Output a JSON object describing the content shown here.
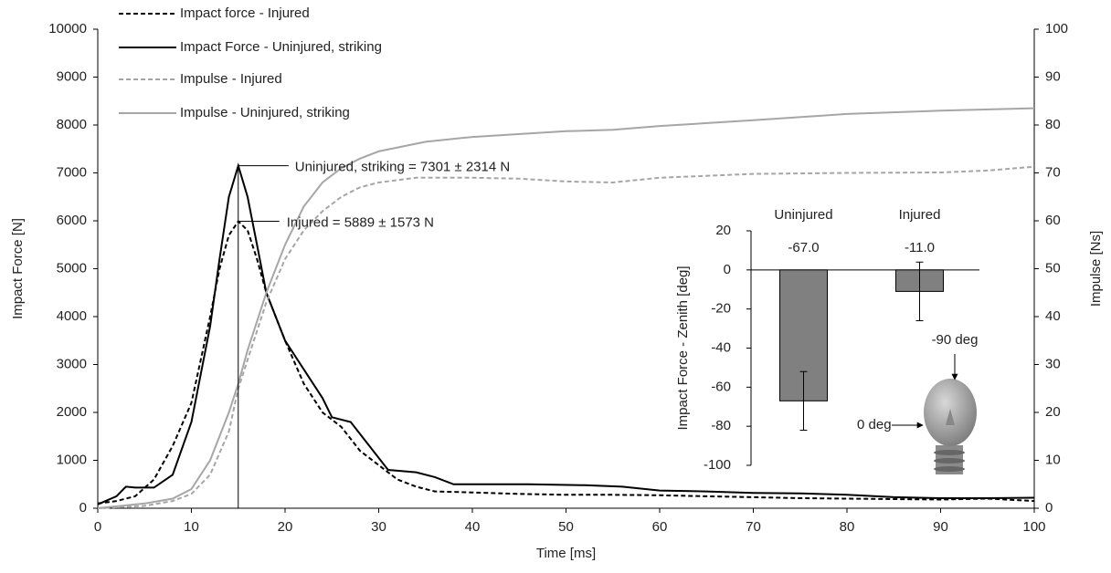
{
  "chart_data": [
    {
      "type": "line",
      "xlabel": "Time [ms]",
      "ylabel": "Impact Force [N]",
      "y2label": "Impulse [Ns]",
      "xlim": [
        0,
        100
      ],
      "xticks": [
        0,
        10,
        20,
        30,
        40,
        50,
        60,
        70,
        80,
        90,
        100
      ],
      "ylim": [
        0,
        10000
      ],
      "yticks": [
        0,
        1000,
        2000,
        3000,
        4000,
        5000,
        6000,
        7000,
        8000,
        9000,
        10000
      ],
      "y2lim": [
        0,
        100
      ],
      "y2ticks": [
        0,
        10,
        20,
        30,
        40,
        50,
        60,
        70,
        80,
        90,
        100
      ],
      "legend": "upper left",
      "annotations": [
        "Uninjured, striking = 7301 ± 2314 N",
        "Injured = 5889 ± 1573 N"
      ],
      "series": [
        {
          "name": "Impact force - Injured",
          "color": "#000000",
          "dashed": true,
          "x": [
            0,
            2,
            4,
            6,
            8,
            10,
            12,
            13,
            14,
            15,
            16,
            17,
            18,
            20,
            22,
            24,
            26,
            28,
            30,
            32,
            34,
            36,
            40,
            45,
            50,
            55,
            60,
            65,
            70,
            75,
            80,
            85,
            90,
            95,
            100
          ],
          "values": [
            100,
            150,
            250,
            600,
            1300,
            2200,
            4000,
            5000,
            5700,
            5990,
            5800,
            5200,
            4500,
            3500,
            2600,
            2000,
            1700,
            1200,
            900,
            600,
            450,
            350,
            330,
            300,
            280,
            280,
            270,
            250,
            230,
            210,
            200,
            190,
            180,
            200,
            150
          ]
        },
        {
          "name": "Impact Force - Uninjured, striking",
          "color": "#000000",
          "dashed": false,
          "x": [
            0,
            2,
            3,
            4,
            6,
            8,
            10,
            12,
            13,
            14,
            15,
            16,
            17,
            18,
            20,
            22,
            24,
            25,
            27,
            29,
            31,
            34,
            36,
            38,
            42,
            46,
            52,
            56,
            60,
            65,
            70,
            75,
            80,
            85,
            90,
            95,
            100
          ],
          "values": [
            80,
            250,
            450,
            430,
            430,
            700,
            1800,
            3800,
            5200,
            6500,
            7150,
            6500,
            5500,
            4500,
            3500,
            2900,
            2300,
            1900,
            1800,
            1300,
            800,
            750,
            650,
            500,
            500,
            500,
            480,
            450,
            370,
            350,
            320,
            310,
            280,
            230,
            210,
            210,
            220
          ]
        },
        {
          "name": "Impulse - Injured",
          "color": "#a6a6a6",
          "dashed": true,
          "axis": "y2",
          "x": [
            0,
            5,
            8,
            10,
            12,
            14,
            15,
            16,
            18,
            20,
            22,
            24,
            26,
            28,
            30,
            34,
            40,
            45,
            50,
            55,
            60,
            70,
            80,
            90,
            95,
            100
          ],
          "values": [
            0,
            0.5,
            1.5,
            3,
            7,
            16,
            25,
            31,
            43,
            52,
            58,
            62,
            65,
            67,
            68,
            69,
            69,
            68.8,
            68.2,
            68,
            69,
            69.8,
            70,
            70.1,
            70.5,
            71.3
          ]
        },
        {
          "name": "Impulse - Uninjured, striking",
          "color": "#a6a6a6",
          "dashed": false,
          "axis": "y2",
          "x": [
            0,
            5,
            8,
            10,
            12,
            14,
            15,
            16,
            18,
            20,
            22,
            24,
            26,
            28,
            30,
            35,
            40,
            50,
            55,
            60,
            70,
            80,
            90,
            100
          ],
          "values": [
            0,
            1,
            2,
            4,
            10,
            20,
            26,
            33,
            45,
            55,
            63,
            68,
            71,
            73,
            74.5,
            76.5,
            77.5,
            78.7,
            79,
            79.8,
            81,
            82.3,
            83,
            83.5
          ]
        }
      ]
    },
    {
      "type": "bar",
      "ylabel": "Impact Force - Zenith [deg]",
      "categories": [
        "Uninjured",
        "Injured"
      ],
      "values": [
        -67.0,
        -11.0
      ],
      "value_labels": [
        "-67.0",
        "-11.0"
      ],
      "errors": [
        15,
        15
      ],
      "color": "#808080",
      "ylim": [
        -100,
        20
      ],
      "yticks": [
        -100,
        -80,
        -60,
        -40,
        -20,
        0,
        20
      ],
      "annotations": [
        "-90 deg",
        "0 deg"
      ]
    }
  ]
}
